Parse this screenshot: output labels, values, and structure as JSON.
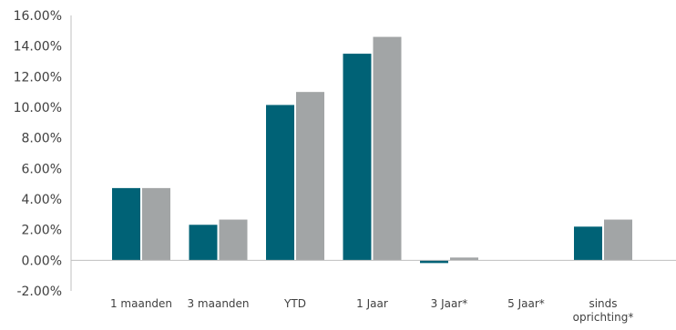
{
  "chart_data": {
    "type": "bar",
    "categories": [
      "1 maanden",
      "3 maanden",
      "YTD",
      "1 Jaar",
      "3 Jaar*",
      "5 Jaar*",
      "sinds oprichting*"
    ],
    "category_lines": [
      [
        "1 maanden"
      ],
      [
        "3 maanden"
      ],
      [
        "YTD"
      ],
      [
        "1 Jaar"
      ],
      [
        "3 Jaar*"
      ],
      [
        "5 Jaar*"
      ],
      [
        "sinds",
        "oprichting*"
      ]
    ],
    "series": [
      {
        "values": [
          4.72,
          2.32,
          10.15,
          13.5,
          -0.18,
          0.0,
          2.2
        ],
        "color": "#006276"
      },
      {
        "values": [
          4.72,
          2.66,
          11.0,
          14.6,
          0.18,
          0.0,
          2.66
        ],
        "color": "#a2a5a6"
      }
    ],
    "ylim": [
      -2.0,
      16.0
    ],
    "yticks": [
      "16.00%",
      "14.00%",
      "12.00%",
      "10.00%",
      "8.00%",
      "6.00%",
      "4.00%",
      "2.00%",
      "0.00%",
      "-2.00%"
    ],
    "grid": false,
    "title": "",
    "xlabel": "",
    "ylabel": ""
  }
}
